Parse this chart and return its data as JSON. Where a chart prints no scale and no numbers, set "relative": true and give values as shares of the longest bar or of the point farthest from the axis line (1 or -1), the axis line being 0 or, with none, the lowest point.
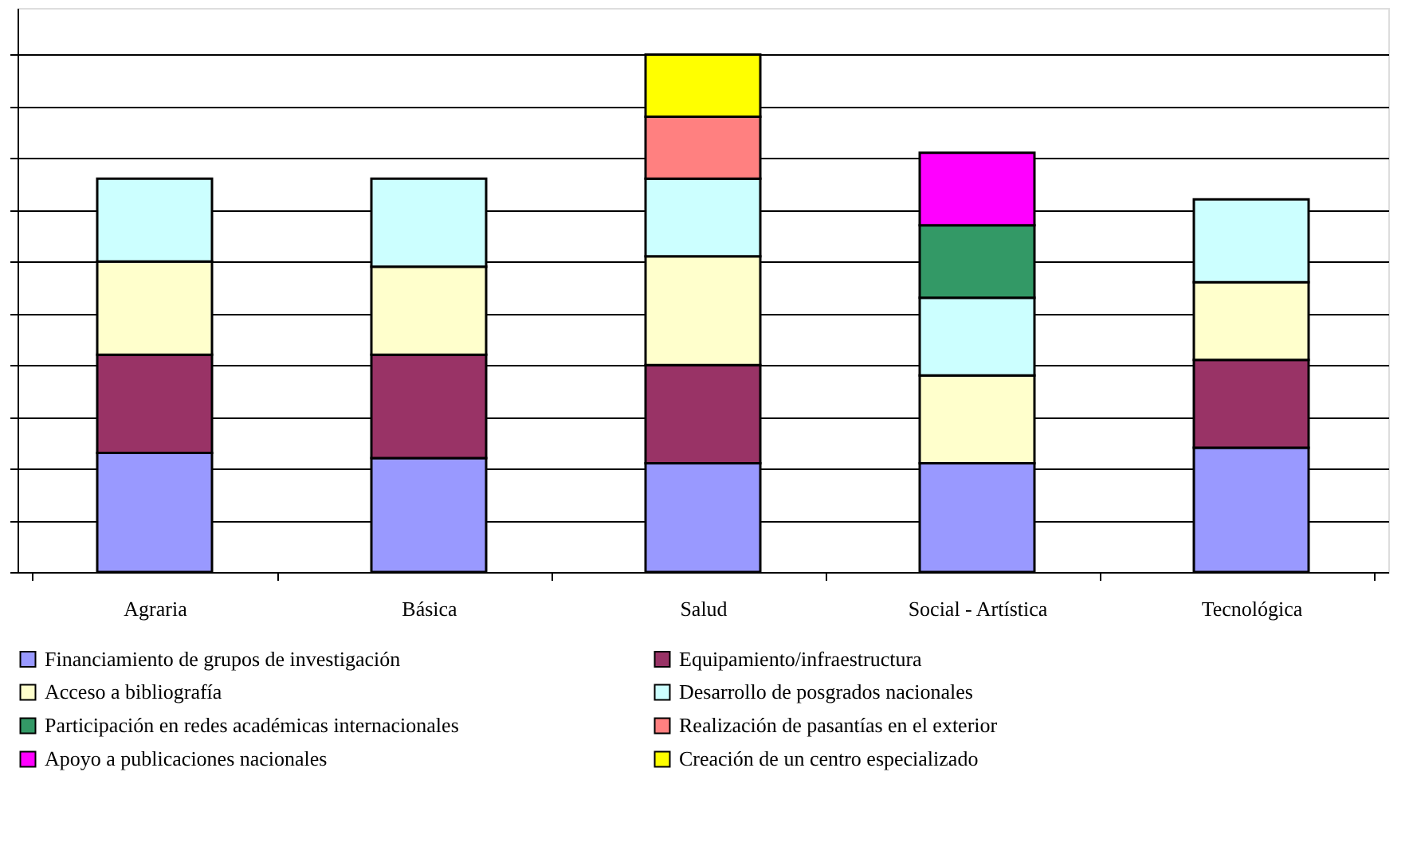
{
  "chart_data": {
    "type": "bar",
    "stacked": true,
    "relative": true,
    "grid": "y",
    "legend": "bottom",
    "categories": [
      "Agraria",
      "Básica",
      "Salud",
      "Social - Artística",
      "Tecnológica"
    ],
    "series": [
      {
        "name": "Financiamiento de grupos de investigación",
        "color": "#9999ff",
        "values": [
          0.23,
          0.22,
          0.21,
          0.21,
          0.24
        ]
      },
      {
        "name": "Equipamiento/infraestructura",
        "color": "#993366",
        "values": [
          0.19,
          0.2,
          0.19,
          null,
          0.17
        ]
      },
      {
        "name": "Acceso a bibliografía",
        "color": "#ffffcc",
        "values": [
          0.18,
          0.17,
          0.21,
          0.17,
          0.15
        ]
      },
      {
        "name": "Desarrollo de posgrados nacionales",
        "color": "#ccffff",
        "values": [
          0.16,
          0.17,
          0.15,
          0.15,
          0.16
        ]
      },
      {
        "name": "Participación en redes académicas internacionales",
        "color": "#339966",
        "values": [
          null,
          null,
          null,
          0.14,
          null
        ]
      },
      {
        "name": "Realización de pasantías en el exterior",
        "color": "#ff8080",
        "values": [
          null,
          null,
          0.12,
          null,
          null
        ]
      },
      {
        "name": "Apoyo a publicaciones nacionales",
        "color": "#ff00ff",
        "values": [
          null,
          null,
          null,
          0.14,
          null
        ]
      },
      {
        "name": "Creación de un centro especializado",
        "color": "#ffff00",
        "values": [
          null,
          null,
          0.12,
          null,
          null
        ]
      }
    ]
  }
}
